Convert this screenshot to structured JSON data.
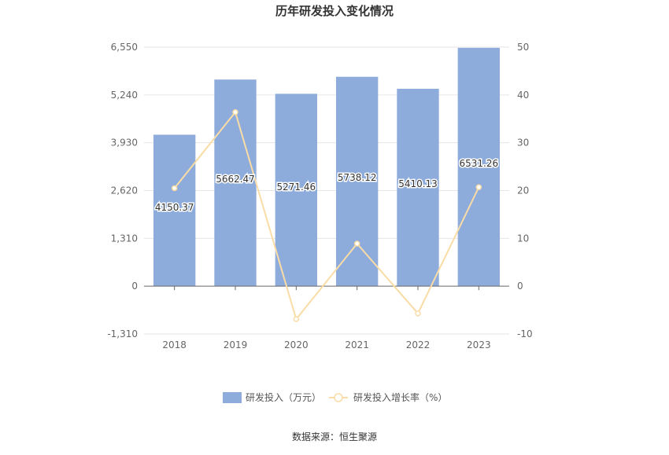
{
  "chart_data": {
    "type": "bar",
    "title": "历年研发投入变化情况",
    "categories": [
      "2018",
      "2019",
      "2020",
      "2021",
      "2022",
      "2023"
    ],
    "series": [
      {
        "name": "研发投入（万元）",
        "type": "bar",
        "axis": "left",
        "color": "#8eacdb",
        "values": [
          4150.37,
          5662.47,
          5271.46,
          5738.12,
          5410.13,
          6531.26
        ],
        "labels": [
          "4150.37",
          "5662.47",
          "5271.46",
          "5738.12",
          "5410.13",
          "6531.26"
        ]
      },
      {
        "name": "研发投入增长率（%）",
        "type": "line",
        "axis": "right",
        "color": "#f9dca6",
        "values": [
          20.5,
          36.4,
          -6.9,
          8.9,
          -5.7,
          20.7
        ]
      }
    ],
    "y_left": {
      "min": -1310,
      "max": 6550,
      "ticks": [
        -1310,
        0,
        1310,
        2620,
        3930,
        5240,
        6550
      ],
      "tick_labels": [
        "-1,310",
        "0",
        "1,310",
        "2,620",
        "3,930",
        "5,240",
        "6,550"
      ]
    },
    "y_right": {
      "min": -10,
      "max": 50,
      "ticks": [
        -10,
        0,
        10,
        20,
        30,
        40,
        50
      ],
      "tick_labels": [
        "-10",
        "0",
        "10",
        "20",
        "30",
        "40",
        "50"
      ]
    },
    "grid": true,
    "legend_position": "bottom",
    "source": "数据来源：恒生聚源"
  }
}
